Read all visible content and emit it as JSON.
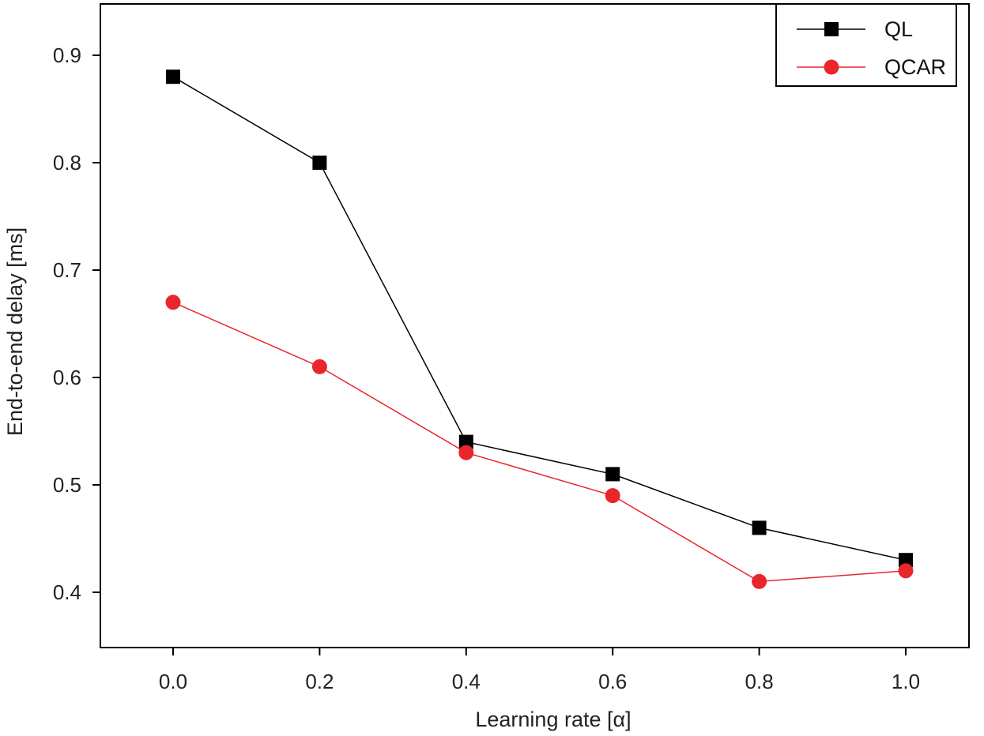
{
  "chart_data": {
    "type": "line",
    "title": "",
    "xlabel": "Learning rate [α]",
    "ylabel": "End-to-end delay [ms]",
    "xlim": [
      -0.1,
      1.1
    ],
    "ylim": [
      0.35,
      0.95
    ],
    "xticks": [
      "0.0",
      "0.2",
      "0.4",
      "0.6",
      "0.8",
      "1.0"
    ],
    "yticks": [
      "0.4",
      "0.5",
      "0.6",
      "0.7",
      "0.8",
      "0.9"
    ],
    "x": [
      0.0,
      0.2,
      0.4,
      0.6,
      0.8,
      1.0
    ],
    "grid": false,
    "legend_position": "top-right",
    "series": [
      {
        "name": "QL",
        "marker": "square",
        "color": "#000000",
        "values": [
          0.88,
          0.8,
          0.54,
          0.51,
          0.46,
          0.43
        ]
      },
      {
        "name": "QCAR",
        "marker": "circle",
        "color": "#e8262c",
        "values": [
          0.67,
          0.61,
          0.53,
          0.49,
          0.41,
          0.42
        ]
      }
    ]
  }
}
